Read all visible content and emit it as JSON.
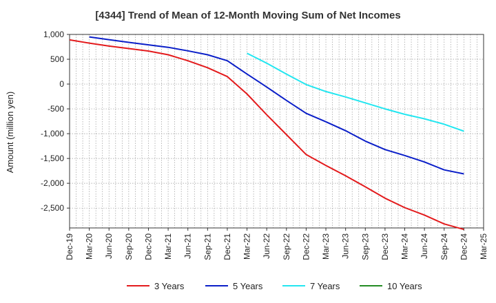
{
  "chart_data": {
    "type": "line",
    "title": "[4344]  Trend of Mean of 12-Month Moving Sum of Net Incomes",
    "ylabel": "Amount (million yen)",
    "xlabel": "",
    "ylim": [
      -2900,
      1000
    ],
    "yticks": [
      1000,
      500,
      0,
      -500,
      -1000,
      -1500,
      -2000,
      -2500
    ],
    "ytick_labels": [
      "1,000",
      "500",
      "0",
      "-500",
      "-1,000",
      "-1,500",
      "-2,000",
      "-2,500"
    ],
    "x_start": "2019-12",
    "x_end": "2025-03",
    "xtick_labels": [
      "Dec-19",
      "Mar-20",
      "Jun-20",
      "Sep-20",
      "Dec-20",
      "Mar-21",
      "Jun-21",
      "Sep-21",
      "Dec-21",
      "Mar-22",
      "Jun-22",
      "Sep-22",
      "Dec-22",
      "Mar-23",
      "Jun-23",
      "Sep-23",
      "Dec-23",
      "Mar-24",
      "Jun-24",
      "Sep-24",
      "Dec-24",
      "Mar-25"
    ],
    "grid": true,
    "legend_position": "bottom",
    "series": [
      {
        "name": "3 Years",
        "color": "#e31a1c",
        "x": [
          "2019-12",
          "2020-03",
          "2020-06",
          "2020-09",
          "2020-12",
          "2021-03",
          "2021-06",
          "2021-09",
          "2021-12",
          "2022-03",
          "2022-06",
          "2022-09",
          "2022-12",
          "2023-03",
          "2023-06",
          "2023-09",
          "2023-12",
          "2024-03",
          "2024-06",
          "2024-09",
          "2024-12"
        ],
        "y": [
          890,
          825,
          765,
          715,
          665,
          590,
          470,
          330,
          150,
          -200,
          -620,
          -1020,
          -1420,
          -1640,
          -1850,
          -2070,
          -2300,
          -2490,
          -2640,
          -2820,
          -2930
        ]
      },
      {
        "name": "5 Years",
        "color": "#0a1ec8",
        "x": [
          "2020-03",
          "2020-06",
          "2020-09",
          "2020-12",
          "2021-03",
          "2021-06",
          "2021-09",
          "2021-12",
          "2022-03",
          "2022-06",
          "2022-09",
          "2022-12",
          "2023-03",
          "2023-06",
          "2023-09",
          "2023-12",
          "2024-03",
          "2024-06",
          "2024-09",
          "2024-12"
        ],
        "y": [
          950,
          895,
          840,
          790,
          740,
          670,
          590,
          470,
          200,
          -60,
          -330,
          -590,
          -760,
          -940,
          -1150,
          -1320,
          -1440,
          -1570,
          -1730,
          -1810
        ]
      },
      {
        "name": "7 Years",
        "color": "#22e6f0",
        "x": [
          "2022-03",
          "2022-06",
          "2022-09",
          "2022-12",
          "2023-03",
          "2023-06",
          "2023-09",
          "2023-12",
          "2024-03",
          "2024-06",
          "2024-09",
          "2024-12"
        ],
        "y": [
          620,
          420,
          200,
          -10,
          -150,
          -260,
          -380,
          -500,
          -610,
          -700,
          -810,
          -950
        ]
      },
      {
        "name": "10 Years",
        "color": "#228b22",
        "x": [],
        "y": []
      }
    ]
  }
}
